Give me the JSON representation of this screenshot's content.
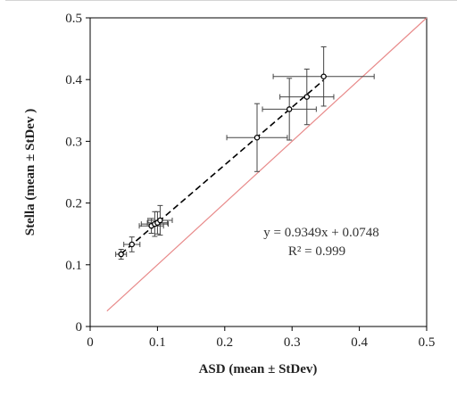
{
  "chart_data": {
    "type": "scatter",
    "title": "",
    "xlabel": "ASD (mean ± StDev)",
    "ylabel": "Stella (mean ± StDev )",
    "xlim": [
      0,
      0.5
    ],
    "ylim": [
      0,
      0.5
    ],
    "x_ticks": [
      "0",
      "0.1",
      "0.2",
      "0.3",
      "0.4",
      "0.5"
    ],
    "y_ticks": [
      "0",
      "0.1",
      "0.2",
      "0.3",
      "0.4",
      "0.5"
    ],
    "x_tick_values": [
      0,
      0.1,
      0.2,
      0.3,
      0.4,
      0.5
    ],
    "y_tick_values": [
      0,
      0.1,
      0.2,
      0.3,
      0.4,
      0.5
    ],
    "grid": false,
    "legend": "none",
    "points": [
      {
        "x": 0.046,
        "y": 0.117,
        "xerr": 0.008,
        "yerr": 0.008
      },
      {
        "x": 0.062,
        "y": 0.133,
        "xerr": 0.012,
        "yerr": 0.012
      },
      {
        "x": 0.091,
        "y": 0.163,
        "xerr": 0.018,
        "yerr": 0.012
      },
      {
        "x": 0.096,
        "y": 0.166,
        "xerr": 0.02,
        "yerr": 0.02
      },
      {
        "x": 0.1,
        "y": 0.168,
        "xerr": 0.015,
        "yerr": 0.018
      },
      {
        "x": 0.104,
        "y": 0.172,
        "xerr": 0.018,
        "yerr": 0.024
      },
      {
        "x": 0.248,
        "y": 0.306,
        "xerr": 0.045,
        "yerr": 0.055
      },
      {
        "x": 0.296,
        "y": 0.352,
        "xerr": 0.04,
        "yerr": 0.05
      },
      {
        "x": 0.322,
        "y": 0.372,
        "xerr": 0.04,
        "yerr": 0.045
      },
      {
        "x": 0.347,
        "y": 0.405,
        "xerr": 0.075,
        "yerr": 0.048
      }
    ],
    "fit_line": {
      "slope": 0.9349,
      "intercept": 0.0748,
      "x_range": [
        0.046,
        0.347
      ],
      "style": "dashed",
      "color": "#000000"
    },
    "identity_line": {
      "x_range": [
        0.025,
        0.5
      ],
      "color": "#e88a8a"
    },
    "annotations": {
      "equation": "y = 0.9349x  + 0.0748",
      "r_squared": "R² = 0.999"
    },
    "colors": {
      "points": "#000000",
      "errorbars": "#444444",
      "identity": "#e88a8a",
      "axes": "#000000"
    }
  }
}
